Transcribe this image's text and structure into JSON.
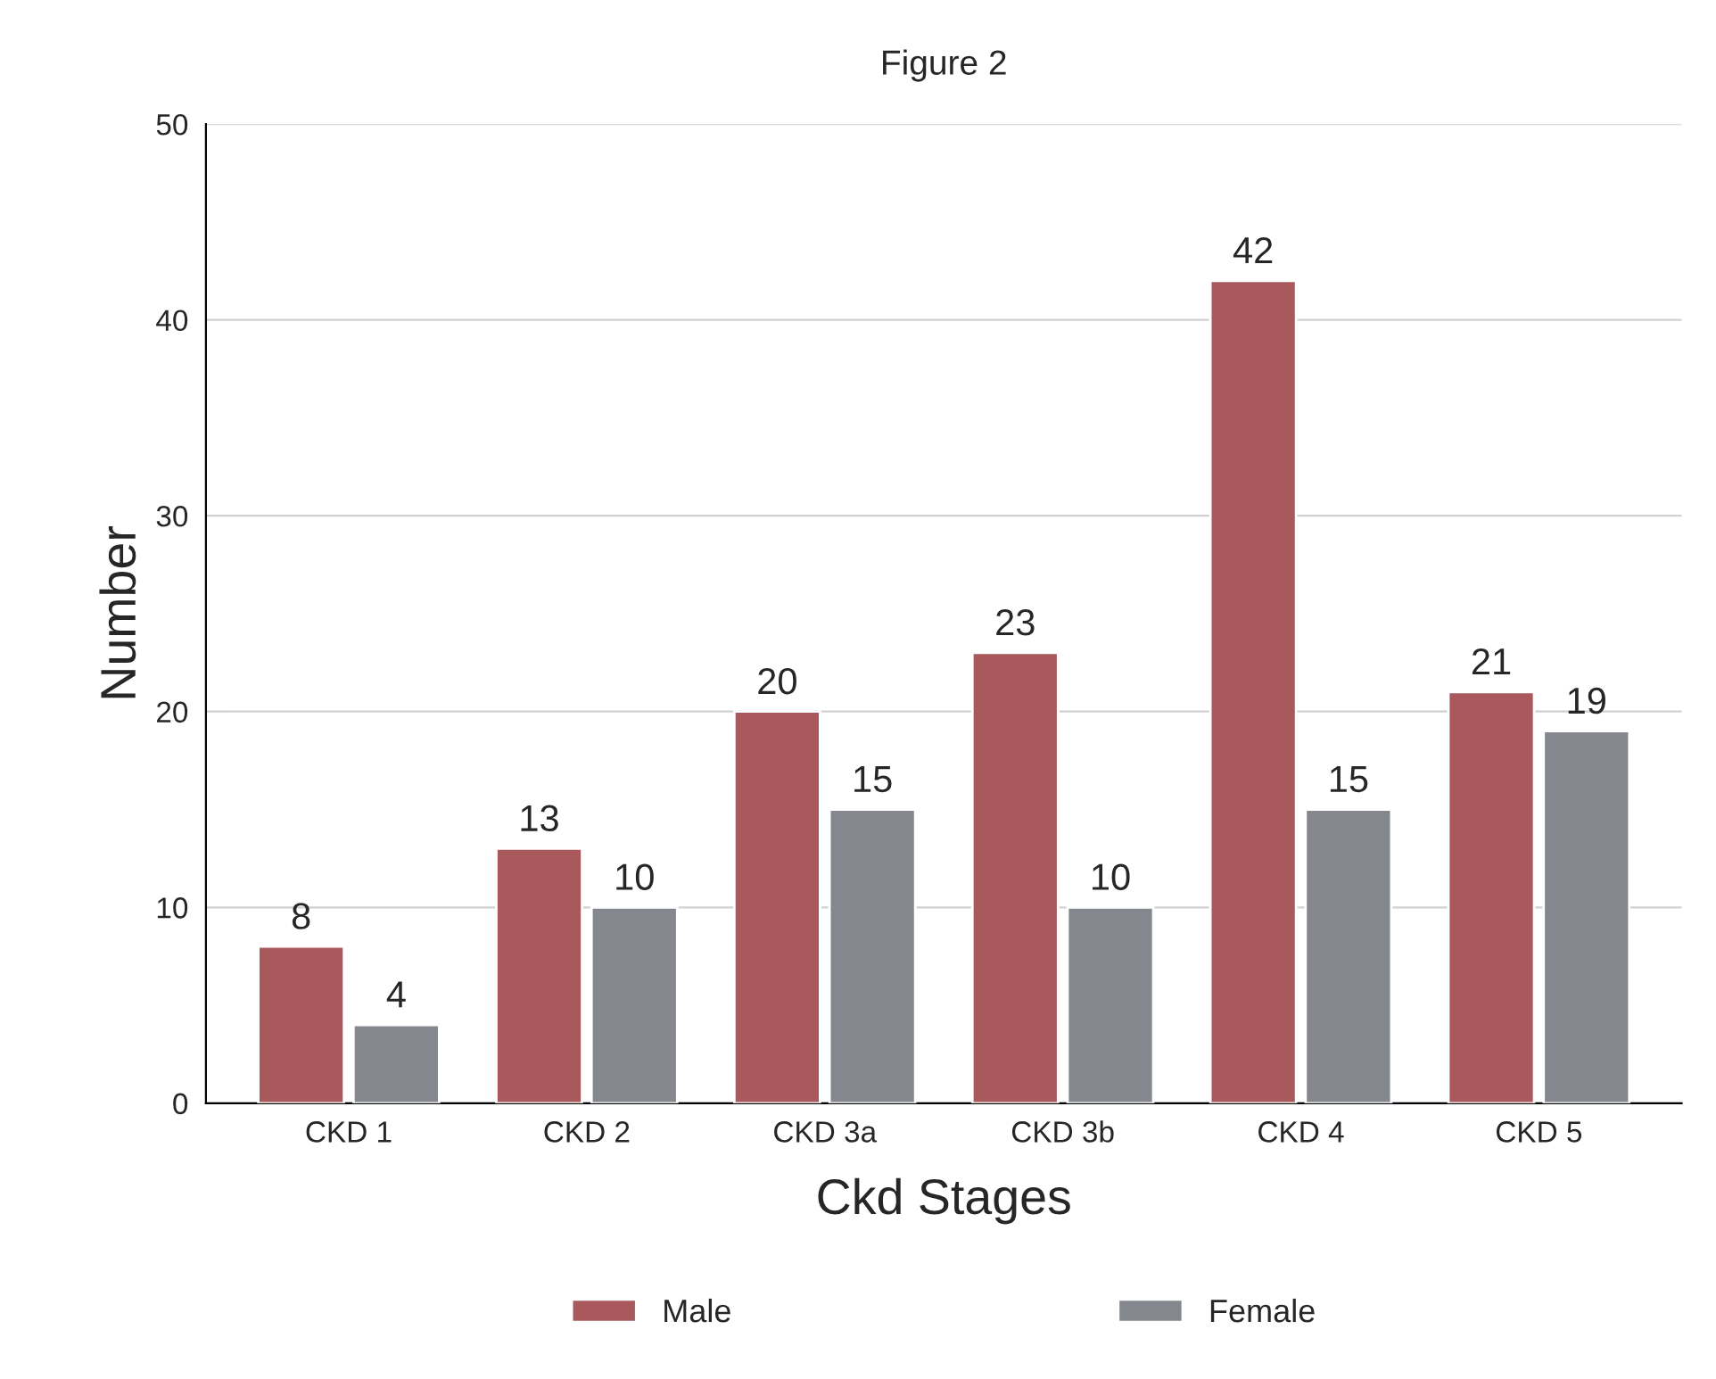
{
  "chart_data": {
    "type": "bar",
    "title": "Figure 2",
    "xlabel": "Ckd Stages",
    "ylabel": "Number",
    "categories": [
      "CKD 1",
      "CKD 2",
      "CKD 3a",
      "CKD 3b",
      "CKD 4",
      "CKD 5"
    ],
    "series": [
      {
        "name": "Male",
        "color": "#a9585c",
        "values": [
          8,
          13,
          20,
          23,
          42,
          21
        ]
      },
      {
        "name": "Female",
        "color": "#85878f",
        "values": [
          4,
          10,
          15,
          10,
          15,
          19
        ]
      }
    ],
    "ylim": [
      0,
      50
    ],
    "yticks": [
      0,
      10,
      20,
      30,
      40,
      50
    ],
    "grid": "y",
    "legend": "bottom",
    "data_labels": true
  }
}
